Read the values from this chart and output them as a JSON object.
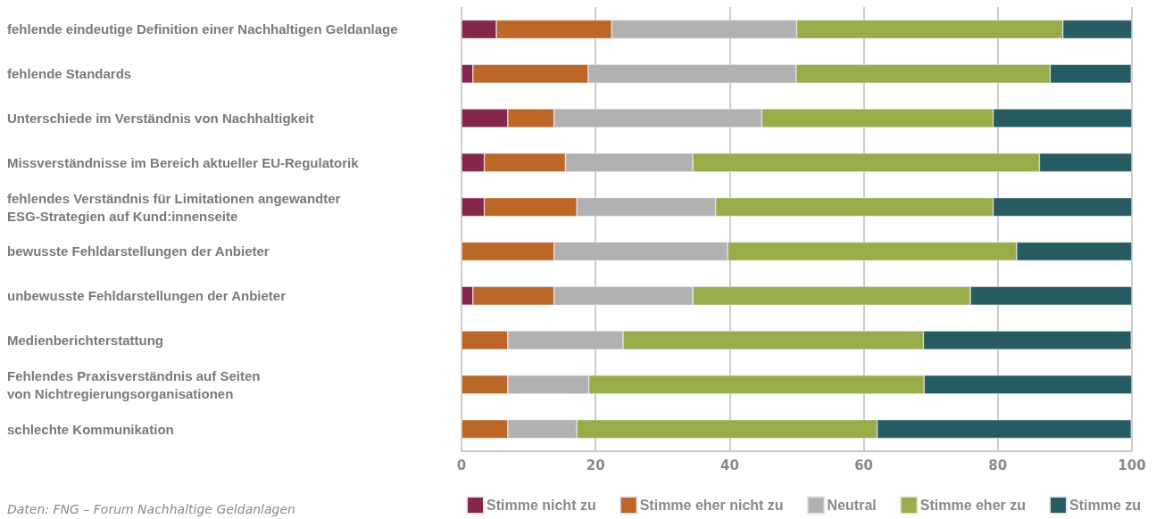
{
  "chart_data": {
    "type": "bar",
    "orientation": "horizontal",
    "stacked": true,
    "categories": [
      "fehlende eindeutige Definition einer Nachhaltigen Geldanlage",
      "fehlende Standards",
      "Unterschiede im Verständnis von Nachhaltigkeit",
      "Missverständnisse im Bereich aktueller EU-Regulatorik",
      "fehlendes Verständnis für Limitationen angewandter\nESG-Strategien auf Kund:innenseite",
      "bewusste Fehldarstellungen der Anbieter",
      "unbewusste Fehldarstellungen der Anbieter",
      "Medienberichterstattung",
      "Fehlendes Praxisverständnis auf Seiten\nvon Nichtregierungsorganisationen",
      "schlechte Kommunikation"
    ],
    "series": [
      {
        "name": "Stimme nicht zu",
        "color": "#85274a",
        "values": [
          5.2,
          1.7,
          6.9,
          3.4,
          3.4,
          0,
          1.7,
          0,
          0,
          0
        ]
      },
      {
        "name": "Stimme eher nicht zu",
        "color": "#bc6728",
        "values": [
          17.2,
          17.2,
          6.9,
          12.1,
          13.8,
          13.8,
          12.1,
          6.9,
          6.9,
          6.9
        ]
      },
      {
        "name": "Neutral",
        "color": "#b1b1b3",
        "values": [
          27.6,
          31.0,
          31.0,
          19.0,
          20.7,
          25.9,
          20.7,
          17.2,
          12.1,
          10.3
        ]
      },
      {
        "name": "Stimme eher zu",
        "color": "#98ac4a",
        "values": [
          39.7,
          37.9,
          34.5,
          51.7,
          41.4,
          43.1,
          41.4,
          44.8,
          50.0,
          44.8
        ]
      },
      {
        "name": "Stimme zu",
        "color": "#275c62",
        "values": [
          10.3,
          12.1,
          20.7,
          13.8,
          20.7,
          17.2,
          24.1,
          31.0,
          31.0,
          37.9
        ]
      }
    ],
    "xlim": [
      0,
      100
    ],
    "xticks": [
      0,
      20,
      40,
      60,
      80,
      100
    ],
    "grid": "x",
    "legend": "bottom right",
    "annotations": [
      "Daten: FNG – Forum Nachhaltige Geldanlagen"
    ]
  }
}
